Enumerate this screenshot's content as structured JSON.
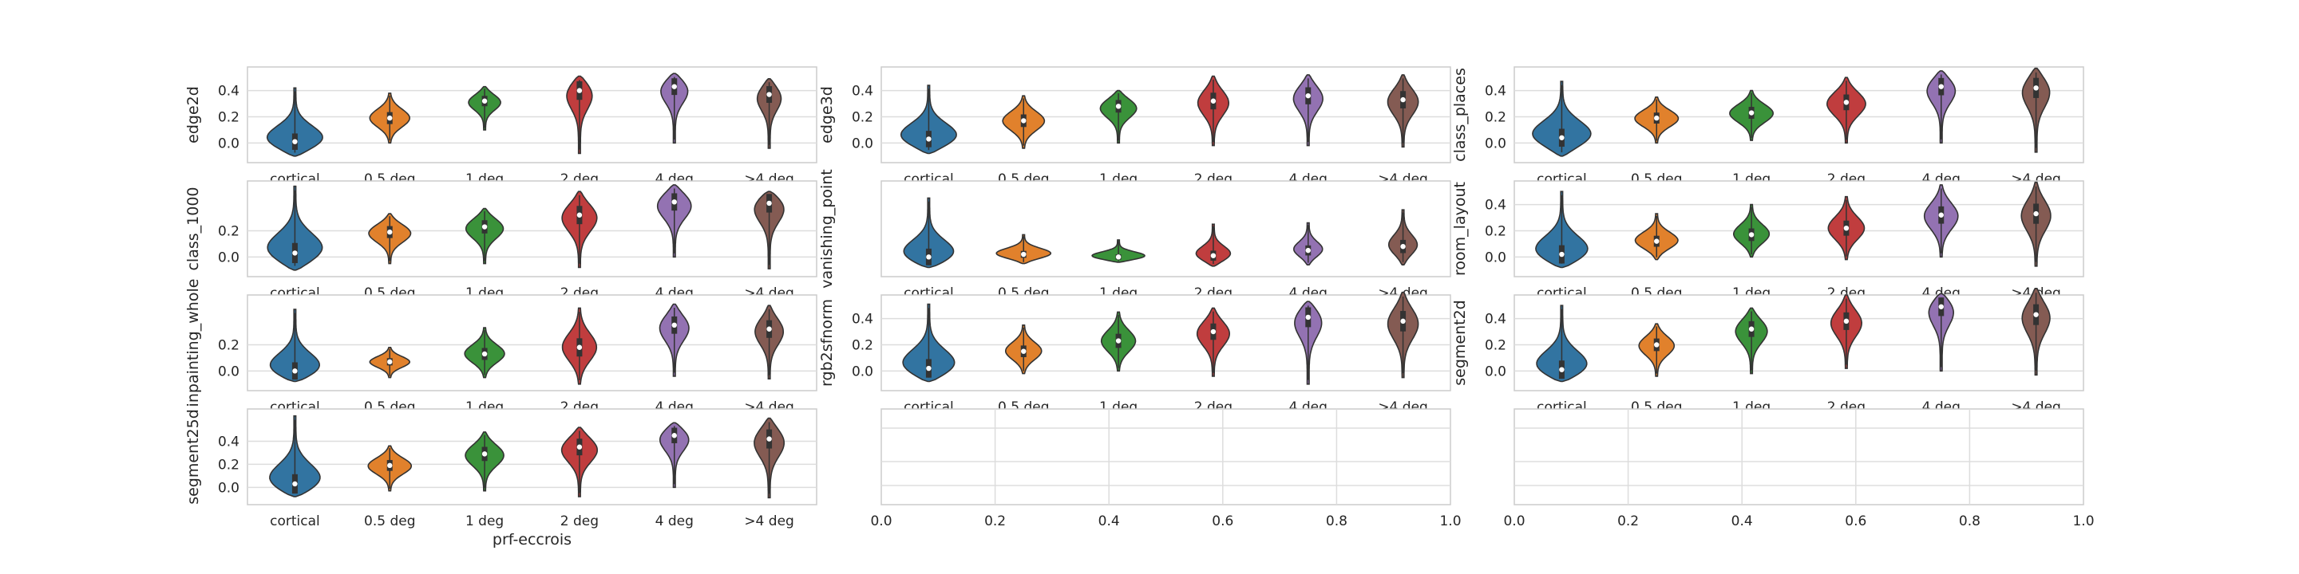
{
  "chart_data": {
    "type": "violin",
    "categories": [
      "cortical",
      "0.5 deg",
      "1 deg",
      "2 deg",
      "4 deg",
      ">4 deg"
    ],
    "category_colors": [
      "#3274a1",
      "#e1812c",
      "#3a923a",
      "#c03d3e",
      "#9372b2",
      "#845b53"
    ],
    "outline_color": "#333333",
    "grid_color": "#dddddd",
    "frame_color": "#cccccc",
    "shared_xlabel": "prf-eccrois",
    "panels": [
      {
        "ylabel": "edge2d",
        "ylim": [
          -0.15,
          0.58
        ],
        "yticks": [
          "0.0",
          "0.2",
          "0.4"
        ],
        "yticks_values": [
          0.0,
          0.2,
          0.4
        ],
        "medians": [
          0.01,
          0.19,
          0.32,
          0.4,
          0.43,
          0.37
        ],
        "min": [
          -0.1,
          0.0,
          0.1,
          -0.08,
          0.0,
          -0.04
        ],
        "max": [
          0.42,
          0.38,
          0.43,
          0.51,
          0.53,
          0.49
        ],
        "width": [
          0.35,
          0.2,
          0.17,
          0.16,
          0.17,
          0.14
        ]
      },
      {
        "ylabel": "edge3d",
        "ylim": [
          -0.15,
          0.58
        ],
        "yticks": [
          "0.0",
          "0.2",
          "0.4"
        ],
        "yticks_values": [
          0.0,
          0.2,
          0.4
        ],
        "medians": [
          0.03,
          0.17,
          0.28,
          0.32,
          0.36,
          0.33
        ],
        "min": [
          -0.08,
          -0.04,
          0.0,
          -0.02,
          -0.02,
          -0.03
        ],
        "max": [
          0.44,
          0.36,
          0.4,
          0.51,
          0.52,
          0.52
        ],
        "width": [
          0.35,
          0.21,
          0.2,
          0.16,
          0.16,
          0.16
        ]
      },
      {
        "ylabel": "class_places",
        "ylim": [
          -0.15,
          0.58
        ],
        "yticks": [
          "0.0",
          "0.2",
          "0.4"
        ],
        "yticks_values": [
          0.0,
          0.2,
          0.4
        ],
        "medians": [
          0.04,
          0.19,
          0.23,
          0.31,
          0.43,
          0.42
        ],
        "min": [
          -0.1,
          0.0,
          0.02,
          0.0,
          0.0,
          -0.07
        ],
        "max": [
          0.47,
          0.35,
          0.4,
          0.5,
          0.55,
          0.57
        ],
        "width": [
          0.35,
          0.22,
          0.22,
          0.2,
          0.17,
          0.16
        ]
      },
      {
        "ylabel": "class_1000",
        "ylim": [
          -0.15,
          0.58
        ],
        "yticks": [
          "0.0",
          "0.2"
        ],
        "yticks_values": [
          0.0,
          0.2
        ],
        "medians": [
          0.03,
          0.19,
          0.23,
          0.32,
          0.42,
          0.41
        ],
        "min": [
          -0.1,
          -0.05,
          -0.05,
          -0.08,
          0.0,
          -0.09
        ],
        "max": [
          0.54,
          0.33,
          0.37,
          0.5,
          0.55,
          0.5
        ],
        "width": [
          0.35,
          0.22,
          0.2,
          0.19,
          0.2,
          0.2
        ]
      },
      {
        "ylabel": "vanishing_point",
        "ylim": [
          -0.15,
          0.58
        ],
        "yticks": [],
        "yticks_values": [],
        "medians": [
          0.0,
          0.02,
          0.0,
          0.01,
          0.05,
          0.08
        ],
        "min": [
          -0.08,
          -0.05,
          -0.04,
          -0.07,
          -0.06,
          -0.06
        ],
        "max": [
          0.45,
          0.17,
          0.13,
          0.25,
          0.26,
          0.36
        ],
        "width": [
          0.35,
          0.3,
          0.32,
          0.2,
          0.15,
          0.15
        ]
      },
      {
        "ylabel": "room_layout",
        "ylim": [
          -0.15,
          0.58
        ],
        "yticks": [
          "0.0",
          "0.2",
          "0.4"
        ],
        "yticks_values": [
          0.0,
          0.2,
          0.4
        ],
        "medians": [
          0.02,
          0.12,
          0.17,
          0.22,
          0.32,
          0.33
        ],
        "min": [
          -0.08,
          -0.02,
          0.0,
          -0.02,
          0.0,
          -0.07
        ],
        "max": [
          0.5,
          0.33,
          0.4,
          0.46,
          0.55,
          0.57
        ],
        "width": [
          0.35,
          0.22,
          0.18,
          0.18,
          0.17,
          0.15
        ]
      },
      {
        "ylabel": "inpainting_whole",
        "ylim": [
          -0.15,
          0.58
        ],
        "yticks": [
          "0.0",
          "0.2"
        ],
        "yticks_values": [
          0.0,
          0.2
        ],
        "medians": [
          0.0,
          0.07,
          0.13,
          0.18,
          0.35,
          0.32
        ],
        "min": [
          -0.08,
          -0.05,
          -0.05,
          -0.1,
          -0.04,
          -0.06
        ],
        "max": [
          0.47,
          0.18,
          0.33,
          0.48,
          0.51,
          0.5
        ],
        "width": [
          0.35,
          0.2,
          0.2,
          0.17,
          0.16,
          0.15
        ]
      },
      {
        "ylabel": "rgb2sfnorm",
        "ylim": [
          -0.15,
          0.58
        ],
        "yticks": [
          "0.0",
          "0.2",
          "0.4"
        ],
        "yticks_values": [
          0.0,
          0.2,
          0.4
        ],
        "medians": [
          0.02,
          0.15,
          0.23,
          0.3,
          0.41,
          0.38
        ],
        "min": [
          -0.08,
          -0.02,
          0.0,
          -0.04,
          -0.1,
          -0.05
        ],
        "max": [
          0.51,
          0.35,
          0.45,
          0.48,
          0.53,
          0.6
        ],
        "width": [
          0.35,
          0.18,
          0.17,
          0.17,
          0.17,
          0.16
        ]
      },
      {
        "ylabel": "segment2d",
        "ylim": [
          -0.15,
          0.58
        ],
        "yticks": [
          "0.0",
          "0.2",
          "0.4"
        ],
        "yticks_values": [
          0.0,
          0.2,
          0.4
        ],
        "medians": [
          0.01,
          0.2,
          0.32,
          0.38,
          0.49,
          0.43
        ],
        "min": [
          -0.08,
          -0.04,
          -0.02,
          0.02,
          0.0,
          -0.03
        ],
        "max": [
          0.5,
          0.36,
          0.48,
          0.58,
          0.59,
          0.63
        ],
        "width": [
          0.35,
          0.18,
          0.17,
          0.16,
          0.16,
          0.15
        ]
      },
      {
        "ylabel": "segment25d",
        "ylim": [
          -0.15,
          0.68
        ],
        "yticks": [
          "0.0",
          "0.2",
          "0.4"
        ],
        "yticks_values": [
          0.0,
          0.2,
          0.4
        ],
        "medians": [
          0.03,
          0.19,
          0.29,
          0.35,
          0.45,
          0.42
        ],
        "min": [
          -0.08,
          -0.03,
          -0.03,
          -0.08,
          0.0,
          -0.09
        ],
        "max": [
          0.62,
          0.36,
          0.48,
          0.52,
          0.56,
          0.6
        ],
        "width": [
          0.35,
          0.22,
          0.2,
          0.2,
          0.18,
          0.17
        ]
      },
      {
        "empty": true,
        "xticks": [
          "0.0",
          "0.2",
          "0.4",
          "0.6",
          "0.8",
          "1.0"
        ]
      },
      {
        "empty": true,
        "xticks": [
          "0.0",
          "0.2",
          "0.4",
          "0.6",
          "0.8",
          "1.0"
        ]
      }
    ]
  }
}
